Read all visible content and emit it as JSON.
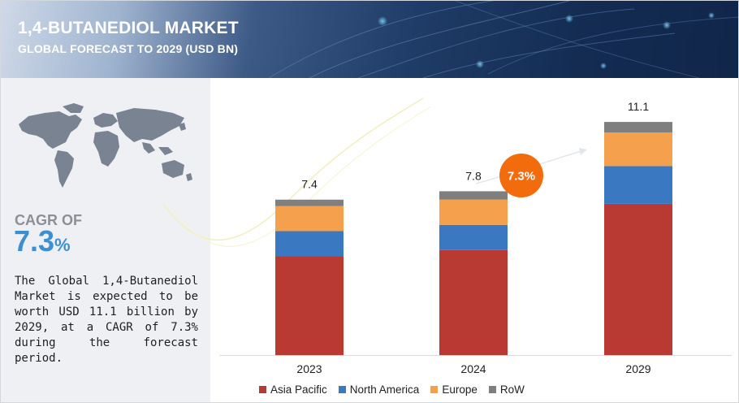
{
  "header": {
    "title": "1,4-BUTANEDIOL MARKET",
    "subtitle": "GLOBAL FORECAST TO 2029 (USD BN)"
  },
  "left_panel": {
    "cagr_label": "CAGR OF",
    "cagr_value": "7.3",
    "cagr_unit": "%",
    "description": "The Global 1,4-Butanediol Market is expected to be worth USD 11.1 billion by 2029, at a CAGR of 7.3% during the forecast period."
  },
  "cagr_bubble": "7.3%",
  "colors": {
    "asia_pacific": "#b83a32",
    "north_america": "#3a78c2",
    "europe": "#f5a04c",
    "row": "#7f7f7f",
    "bubble": "#f26c0d",
    "cagr_text": "#3d8fd1"
  },
  "chart_data": {
    "type": "bar",
    "stacked": true,
    "categories": [
      "2023",
      "2024",
      "2029"
    ],
    "totals_labels": [
      "7.4",
      "7.8",
      "11.1"
    ],
    "series": [
      {
        "name": "Asia Pacific",
        "color": "#b83a32",
        "values": [
          4.7,
          5.0,
          7.2
        ]
      },
      {
        "name": "North America",
        "color": "#3a78c2",
        "values": [
          1.2,
          1.2,
          1.8
        ]
      },
      {
        "name": "Europe",
        "color": "#f5a04c",
        "values": [
          1.2,
          1.2,
          1.6
        ]
      },
      {
        "name": "RoW",
        "color": "#7f7f7f",
        "values": [
          0.3,
          0.4,
          0.5
        ]
      }
    ],
    "ylim": [
      0,
      13
    ],
    "legend_position": "bottom",
    "grid": false
  }
}
